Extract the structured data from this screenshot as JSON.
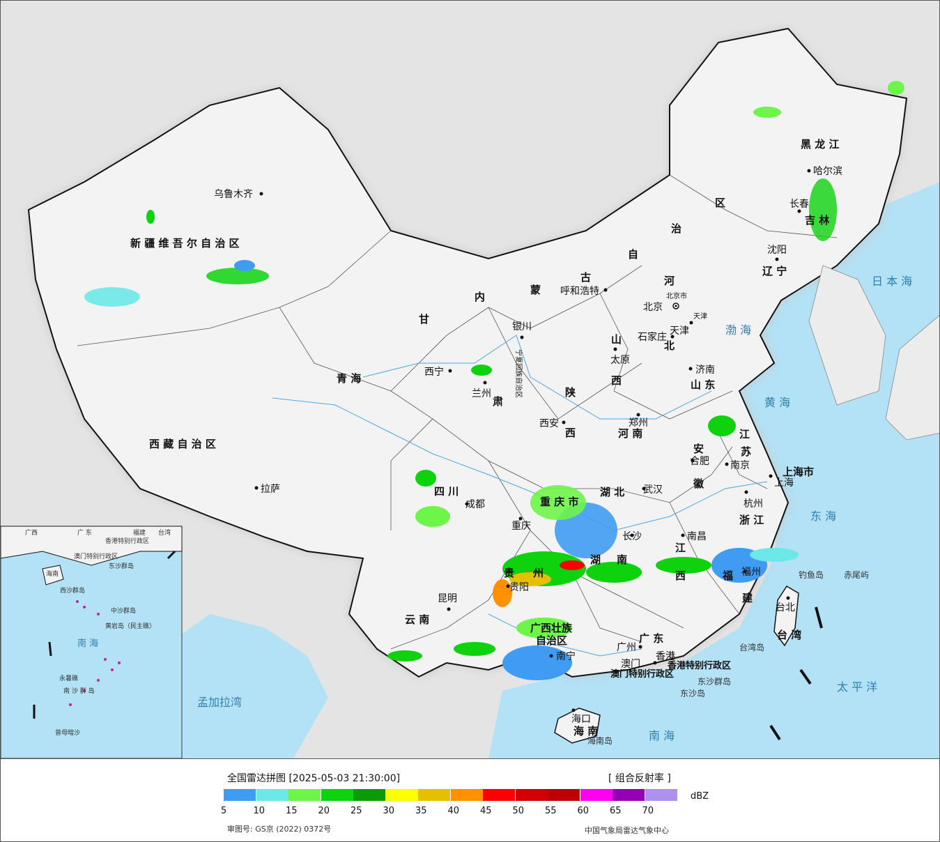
{
  "title": "全国雷达拼图 [2025-05-03 21:30:00]",
  "product": "[ 组合反射率 ]",
  "unit": "dBZ",
  "approval": "审图号: GS京 (2022) 0372号",
  "source": "中国气象局雷达气象中心",
  "scale": [
    {
      "value": "5",
      "color": "#3f9cf2"
    },
    {
      "value": "10",
      "color": "#6ce8e8"
    },
    {
      "value": "15",
      "color": "#6ef54a"
    },
    {
      "value": "20",
      "color": "#0ed20e"
    },
    {
      "value": "25",
      "color": "#0a9a0a"
    },
    {
      "value": "30",
      "color": "#ffff00"
    },
    {
      "value": "35",
      "color": "#e6c000"
    },
    {
      "value": "40",
      "color": "#ff9000"
    },
    {
      "value": "45",
      "color": "#ff0000"
    },
    {
      "value": "50",
      "color": "#d40000"
    },
    {
      "value": "55",
      "color": "#c00000"
    },
    {
      "value": "60",
      "color": "#ff00f0"
    },
    {
      "value": "65",
      "color": "#9600b4"
    },
    {
      "value": "70",
      "color": "#ad90f0"
    }
  ],
  "cities": {
    "urumqi": "乌鲁木齐",
    "lhasa": "拉萨",
    "xining": "西宁",
    "lanzhou": "兰州",
    "yinchuan": "银川",
    "huhhot": "呼和浩特",
    "beijing": "北京",
    "tianjin": "天津",
    "shijiazhuang": "石家庄",
    "taiyuan": "太原",
    "jinan": "济南",
    "zhengzhou": "郑州",
    "xian": "西安",
    "chengdu": "成都",
    "chongqing": "重庆",
    "guiyang": "贵阳",
    "kunming": "昆明",
    "nanning": "南宁",
    "guangzhou": "广州",
    "hongkong": "香港",
    "macao": "澳门",
    "haikou": "海口",
    "changsha": "长沙",
    "wuhan": "武汉",
    "nanchang": "南昌",
    "fuzhou": "福州",
    "hangzhou": "杭州",
    "shanghai": "上海",
    "nanjing": "南京",
    "hefei": "合肥",
    "taipei": "台北",
    "shenyang": "沈阳",
    "changchun": "长春",
    "harbin": "哈尔滨"
  },
  "provinces": {
    "xinjiang": "新 疆 维 吾 尔 自 治 区",
    "tibet": "西 藏 自 治 区",
    "qinghai": "青 海",
    "gansu": "甘",
    "neimenggu1": "内",
    "neimenggu2": "蒙",
    "neimenggu3": "古",
    "neimenggu4": "自",
    "neimenggu5": "治",
    "neimenggu6": "区",
    "heilongjiang": "黑 龙 江",
    "jilin": "吉 林",
    "liaoning": "辽 宁",
    "hebei1": "河",
    "hebei2": "北",
    "shanxi1": "山",
    "shanxi2": "西",
    "shandong": "山 东",
    "henan": "河 南",
    "shaanxi1": "陕",
    "shaanxi2": "西",
    "ningxia": "宁夏回族自治区",
    "sichuan": "四 川",
    "chongqing_m": "重 庆 市",
    "guizhou1": "贵",
    "guizhou2": "州",
    "yunnan": "云 南",
    "guangxi1": "广西壮族",
    "guangxi2": "自治区",
    "guangdong": "广 东",
    "hainan": "海 南",
    "hunan1": "湖",
    "hunan2": "南",
    "hubei": "湖 北",
    "jiangxi1": "江",
    "jiangxi2": "西",
    "fujian1": "福",
    "fujian2": "建",
    "zhejiang": "浙 江",
    "jiangsu1": "江",
    "jiangsu2": "苏",
    "anhui1": "安",
    "anhui2": "徽",
    "shanghai_m": "上海市",
    "beijing_m": "北京市",
    "tianjin_m": "天津",
    "taiwan": "台 湾",
    "hk_sar": "香港特别行政区",
    "macao_sar": "澳门特别行政区",
    "gansu2": "肃"
  },
  "seas": {
    "bohai": "渤 海",
    "yellow": "黄 海",
    "east": "东 海",
    "south": "南 海",
    "japan": "日 本 海",
    "pacific": "太 平 洋",
    "bengal": "孟加拉湾"
  },
  "islands": {
    "diaoyu": "钓鱼岛",
    "chiwei": "赤尾屿",
    "taiwan_isl": "台湾岛",
    "dongsha": "东沙群岛",
    "dongsha2": "东沙岛",
    "hainan_isl": "海南岛"
  },
  "inset": {
    "guangdong": "广 东",
    "fujian": "福建",
    "taiwan": "台湾",
    "guangxi": "广西",
    "hk": "香港特别行政区",
    "macao": "澳门特别行政区",
    "dongsha": "东沙群岛",
    "hainan": "海南",
    "xisha": "西沙群岛",
    "zhongsha": "中沙群岛",
    "huangyan": "黄岩岛（民主礁）",
    "south_sea": "南 海",
    "nansha": "南 沙 群 岛",
    "yongshu": "永暑礁",
    "zengmu": "曾母暗沙"
  }
}
